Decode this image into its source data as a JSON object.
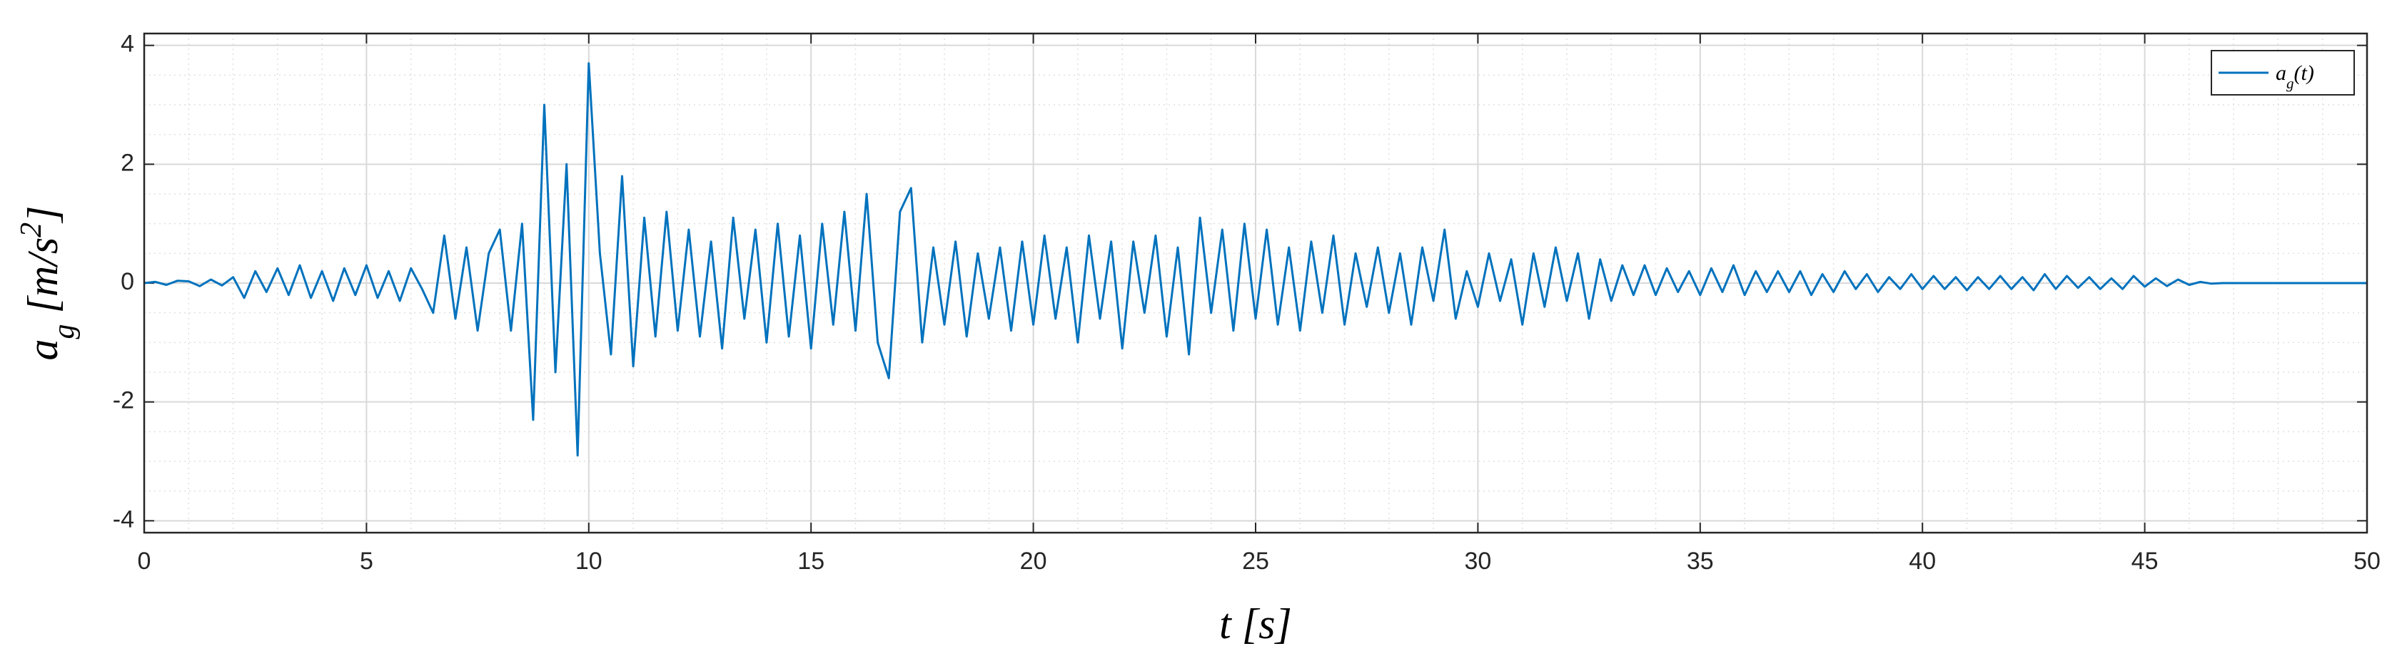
{
  "chart_data": {
    "type": "line",
    "xlabel": [
      [
        "t",
        ""
      ],
      [
        " [s]",
        ""
      ]
    ],
    "ylabel": [
      [
        "a",
        ""
      ],
      [
        "g",
        "sub"
      ],
      [
        " [m/s",
        ""
      ],
      [
        "2",
        "sup"
      ],
      [
        "]",
        ""
      ]
    ],
    "legend_position": "upper right",
    "grid": true,
    "minor_grid": true,
    "minor_divisions": {
      "x": 5,
      "y": 4
    },
    "xlim": [
      0,
      50
    ],
    "xticks": [
      0,
      5,
      10,
      15,
      20,
      25,
      30,
      35,
      40,
      45,
      50
    ],
    "ylim": [
      -4.2,
      4.2
    ],
    "yticks": [
      -4,
      -2,
      0,
      2,
      4
    ],
    "series": [
      {
        "name": [
          [
            "a",
            ""
          ],
          [
            "g",
            "sub"
          ],
          [
            "(t)",
            ""
          ]
        ],
        "color": "#0072bd",
        "x": [
          0,
          0.25,
          0.5,
          0.75,
          1,
          1.25,
          1.5,
          1.75,
          2,
          2.25,
          2.5,
          2.75,
          3,
          3.25,
          3.5,
          3.75,
          4,
          4.25,
          4.5,
          4.75,
          5,
          5.25,
          5.5,
          5.75,
          6,
          6.25,
          6.5,
          6.75,
          7,
          7.25,
          7.5,
          7.75,
          8,
          8.25,
          8.5,
          8.75,
          9,
          9.25,
          9.5,
          9.75,
          10,
          10.25,
          10.5,
          10.75,
          11,
          11.25,
          11.5,
          11.75,
          12,
          12.25,
          12.5,
          12.75,
          13,
          13.25,
          13.5,
          13.75,
          14,
          14.25,
          14.5,
          14.75,
          15,
          15.25,
          15.5,
          15.75,
          16,
          16.25,
          16.5,
          16.75,
          17,
          17.25,
          17.5,
          17.75,
          18,
          18.25,
          18.5,
          18.75,
          19,
          19.25,
          19.5,
          19.75,
          20,
          20.25,
          20.5,
          20.75,
          21,
          21.25,
          21.5,
          21.75,
          22,
          22.25,
          22.5,
          22.75,
          23,
          23.25,
          23.5,
          23.75,
          24,
          24.25,
          24.5,
          24.75,
          25,
          25.25,
          25.5,
          25.75,
          26,
          26.25,
          26.5,
          26.75,
          27,
          27.25,
          27.5,
          27.75,
          28,
          28.25,
          28.5,
          28.75,
          29,
          29.25,
          29.5,
          29.75,
          30,
          30.25,
          30.5,
          30.75,
          31,
          31.25,
          31.5,
          31.75,
          32,
          32.25,
          32.5,
          32.75,
          33,
          33.25,
          33.5,
          33.75,
          34,
          34.25,
          34.5,
          34.75,
          35,
          35.25,
          35.5,
          35.75,
          36,
          36.25,
          36.5,
          36.75,
          37,
          37.25,
          37.5,
          37.75,
          38,
          38.25,
          38.5,
          38.75,
          39,
          39.25,
          39.5,
          39.75,
          40,
          40.25,
          40.5,
          40.75,
          41,
          41.25,
          41.5,
          41.75,
          42,
          42.25,
          42.5,
          42.75,
          43,
          43.25,
          43.5,
          43.75,
          44,
          44.25,
          44.5,
          44.75,
          45,
          45.25,
          45.5,
          45.75,
          46,
          46.25,
          46.5,
          46.75,
          50
        ],
        "values": [
          0,
          0.02,
          -0.03,
          0.04,
          0.03,
          -0.05,
          0.06,
          -0.04,
          0.1,
          -0.25,
          0.2,
          -0.15,
          0.25,
          -0.2,
          0.3,
          -0.25,
          0.2,
          -0.3,
          0.25,
          -0.2,
          0.3,
          -0.25,
          0.2,
          -0.3,
          0.25,
          -0.1,
          -0.5,
          0.8,
          -0.6,
          0.6,
          -0.8,
          0.5,
          0.9,
          -0.8,
          1.0,
          -2.3,
          3.0,
          -1.5,
          2.0,
          -2.9,
          3.7,
          0.5,
          -1.2,
          1.8,
          -1.4,
          1.1,
          -0.9,
          1.2,
          -0.8,
          0.9,
          -0.9,
          0.7,
          -1.1,
          1.1,
          -0.6,
          0.9,
          -1.0,
          1.0,
          -0.9,
          0.8,
          -1.1,
          1.0,
          -0.7,
          1.2,
          -0.8,
          1.5,
          -1.0,
          -1.6,
          1.2,
          1.6,
          -1.0,
          0.6,
          -0.7,
          0.7,
          -0.9,
          0.5,
          -0.6,
          0.6,
          -0.8,
          0.7,
          -0.7,
          0.8,
          -0.6,
          0.6,
          -1.0,
          0.8,
          -0.6,
          0.7,
          -1.1,
          0.7,
          -0.5,
          0.8,
          -0.9,
          0.6,
          -1.2,
          1.1,
          -0.5,
          0.9,
          -0.8,
          1.0,
          -0.6,
          0.9,
          -0.7,
          0.6,
          -0.8,
          0.7,
          -0.5,
          0.8,
          -0.7,
          0.5,
          -0.4,
          0.6,
          -0.5,
          0.5,
          -0.7,
          0.6,
          -0.3,
          0.9,
          -0.6,
          0.2,
          -0.4,
          0.5,
          -0.3,
          0.4,
          -0.7,
          0.5,
          -0.4,
          0.6,
          -0.3,
          0.5,
          -0.6,
          0.4,
          -0.3,
          0.3,
          -0.2,
          0.3,
          -0.2,
          0.25,
          -0.15,
          0.2,
          -0.2,
          0.25,
          -0.15,
          0.3,
          -0.2,
          0.2,
          -0.15,
          0.2,
          -0.15,
          0.2,
          -0.2,
          0.15,
          -0.15,
          0.2,
          -0.1,
          0.15,
          -0.15,
          0.1,
          -0.1,
          0.15,
          -0.1,
          0.12,
          -0.1,
          0.1,
          -0.12,
          0.1,
          -0.1,
          0.12,
          -0.1,
          0.1,
          -0.12,
          0.15,
          -0.1,
          0.12,
          -0.08,
          0.1,
          -0.1,
          0.08,
          -0.1,
          0.12,
          -0.06,
          0.08,
          -0.05,
          0.06,
          -0.03,
          0.02,
          -0.01,
          0,
          0
        ]
      }
    ]
  }
}
